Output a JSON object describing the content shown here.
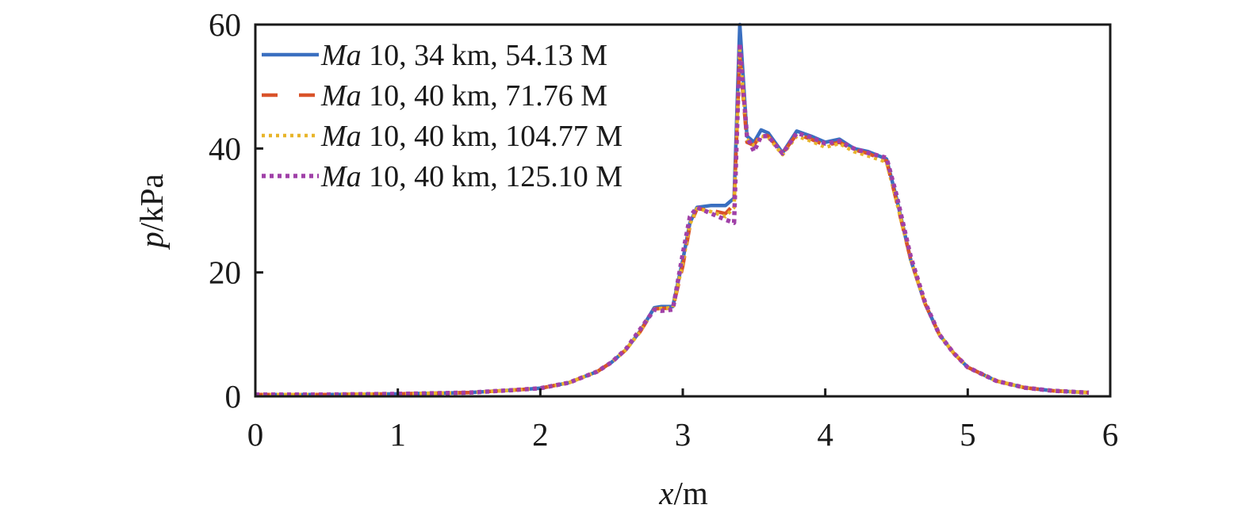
{
  "chart_data": {
    "type": "line",
    "xlabel": {
      "var": "x",
      "unit": "/m"
    },
    "ylabel": {
      "var": "p",
      "unit": "/kPa"
    },
    "xlim": [
      0,
      6
    ],
    "ylim": [
      0,
      60
    ],
    "xticks": [
      "0",
      "1",
      "2",
      "3",
      "4",
      "5",
      "6"
    ],
    "yticks": [
      "0",
      "20",
      "40",
      "60"
    ],
    "grid": false,
    "legend_position": "top-left",
    "x": [
      0,
      0.5,
      1,
      1.5,
      1.8,
      2,
      2.2,
      2.4,
      2.5,
      2.6,
      2.7,
      2.8,
      2.85,
      2.93,
      3.0,
      3.05,
      3.1,
      3.2,
      3.3,
      3.36,
      3.4,
      3.45,
      3.5,
      3.55,
      3.6,
      3.7,
      3.8,
      3.9,
      4.0,
      4.1,
      4.2,
      4.3,
      4.43,
      4.5,
      4.6,
      4.7,
      4.8,
      4.9,
      5.0,
      5.2,
      5.4,
      5.6,
      5.85
    ],
    "series": [
      {
        "name_italic": "Ma",
        "name": " 10, 34 km, 54.13 M",
        "color": "#3a6fc0",
        "style": "solid",
        "values": [
          0.3,
          0.3,
          0.4,
          0.6,
          1.0,
          1.3,
          2.2,
          4,
          5.5,
          7.5,
          10.5,
          14.3,
          14.5,
          14.5,
          22,
          28,
          30.5,
          30.8,
          30.8,
          32,
          60,
          42,
          41,
          43,
          42.5,
          39.3,
          42.8,
          42,
          41,
          41.5,
          40,
          39.5,
          38.3,
          32,
          22,
          15,
          10,
          7,
          4.7,
          2.5,
          1.4,
          0.9,
          0.6
        ]
      },
      {
        "name_italic": "Ma",
        "name": " 10, 40 km, 71.76 M",
        "color": "#d9532a",
        "style": "dashed",
        "values": [
          0.3,
          0.3,
          0.4,
          0.6,
          1.0,
          1.3,
          2.2,
          4,
          5.5,
          7.5,
          10.4,
          14.1,
          14.2,
          14.2,
          21,
          27.5,
          30.3,
          30,
          29.5,
          31,
          55,
          41,
          40.5,
          42.5,
          42,
          39.2,
          42.3,
          41.5,
          40.5,
          41,
          39.8,
          39.2,
          38,
          31.5,
          22,
          15,
          10,
          7,
          4.7,
          2.5,
          1.4,
          0.9,
          0.6
        ]
      },
      {
        "name_italic": "Ma",
        "name": " 10, 40 km, 104.77 M",
        "color": "#e8b52a",
        "style": "dotted",
        "values": [
          0.3,
          0.3,
          0.4,
          0.6,
          1.0,
          1.3,
          2.2,
          4,
          5.5,
          7.5,
          10.4,
          14.1,
          14.2,
          14.3,
          21.5,
          27.8,
          30.3,
          29.8,
          29,
          30.5,
          56,
          41.5,
          40.5,
          42,
          41.8,
          39,
          42,
          41.2,
          40.2,
          40.8,
          39.5,
          38.8,
          37.8,
          31.5,
          22,
          15,
          10,
          7,
          4.7,
          2.5,
          1.4,
          0.9,
          0.6
        ]
      },
      {
        "name_italic": "Ma",
        "name": " 10, 40 km, 125.10 M",
        "color": "#a040a8",
        "style": "dotted-thick",
        "values": [
          0.3,
          0.3,
          0.4,
          0.6,
          1.0,
          1.3,
          2.2,
          4,
          5.5,
          7.6,
          10.8,
          14.0,
          13.8,
          14.0,
          23,
          29,
          30.5,
          29.5,
          28.5,
          28,
          57,
          42,
          39.5,
          42,
          42,
          39.2,
          42.5,
          41.8,
          40.8,
          41.2,
          40,
          39.3,
          38.5,
          32.5,
          22.5,
          15.2,
          10,
          7,
          4.7,
          2.5,
          1.4,
          0.9,
          0.6
        ]
      }
    ]
  }
}
